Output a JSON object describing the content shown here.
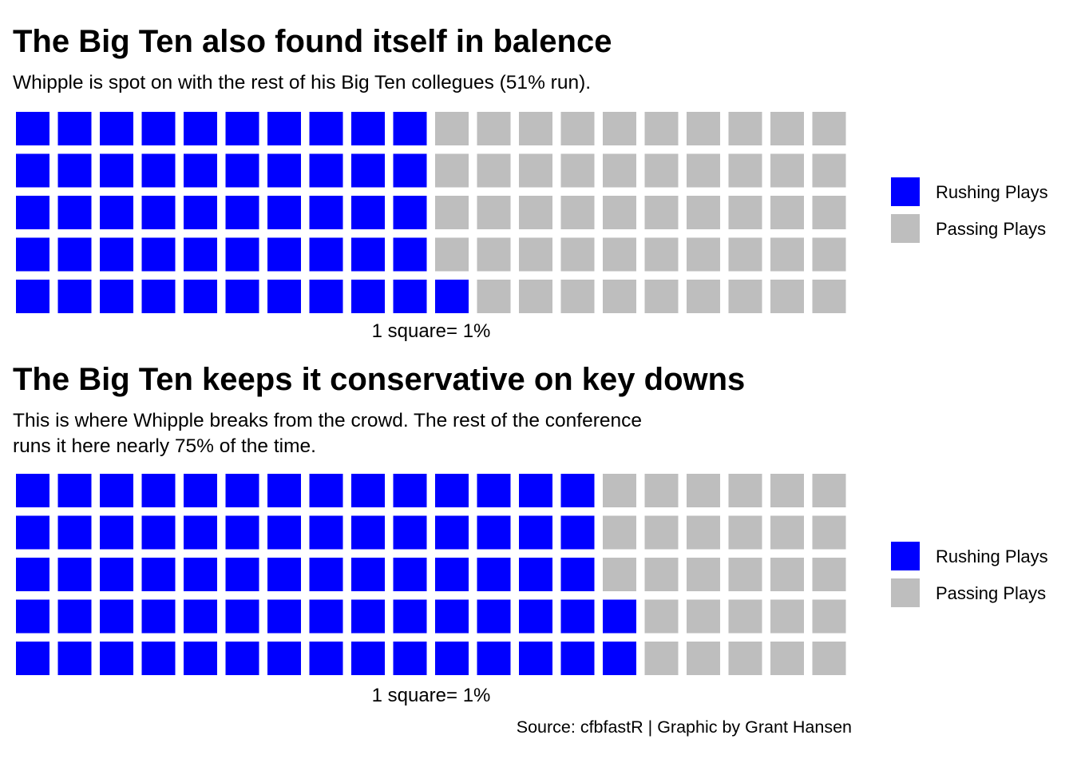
{
  "colors": {
    "rushing": "#0000FF",
    "passing": "#BEBEBE",
    "background": "#FFFFFF"
  },
  "legend": {
    "items": [
      {
        "label": "Rushing Plays",
        "color": "#0000FF"
      },
      {
        "label": "Passing Plays",
        "color": "#BEBEBE"
      }
    ]
  },
  "source": "Source: cfbfastR | Graphic by Grant Hansen",
  "chart_data": [
    {
      "type": "waffle",
      "title": "The Big Ten also found itself in balence",
      "subtitle": "Whipple is spot on with the rest of his Big Ten collegues (51% run).",
      "caption": "1 square= 1%",
      "rows": 5,
      "series": [
        {
          "name": "Rushing Plays",
          "value": 51
        },
        {
          "name": "Passing Plays",
          "value": 49
        }
      ],
      "legend_position": "right"
    },
    {
      "type": "waffle",
      "title": "The Big Ten keeps it conservative on key downs",
      "subtitle": "This is where Whipple breaks from the crowd. The rest of the conference\n runs it here nearly 75% of the time.",
      "caption": "1 square= 1%",
      "rows": 5,
      "series": [
        {
          "name": "Rushing Plays",
          "value": 72
        },
        {
          "name": "Passing Plays",
          "value": 28
        }
      ],
      "legend_position": "right"
    }
  ]
}
